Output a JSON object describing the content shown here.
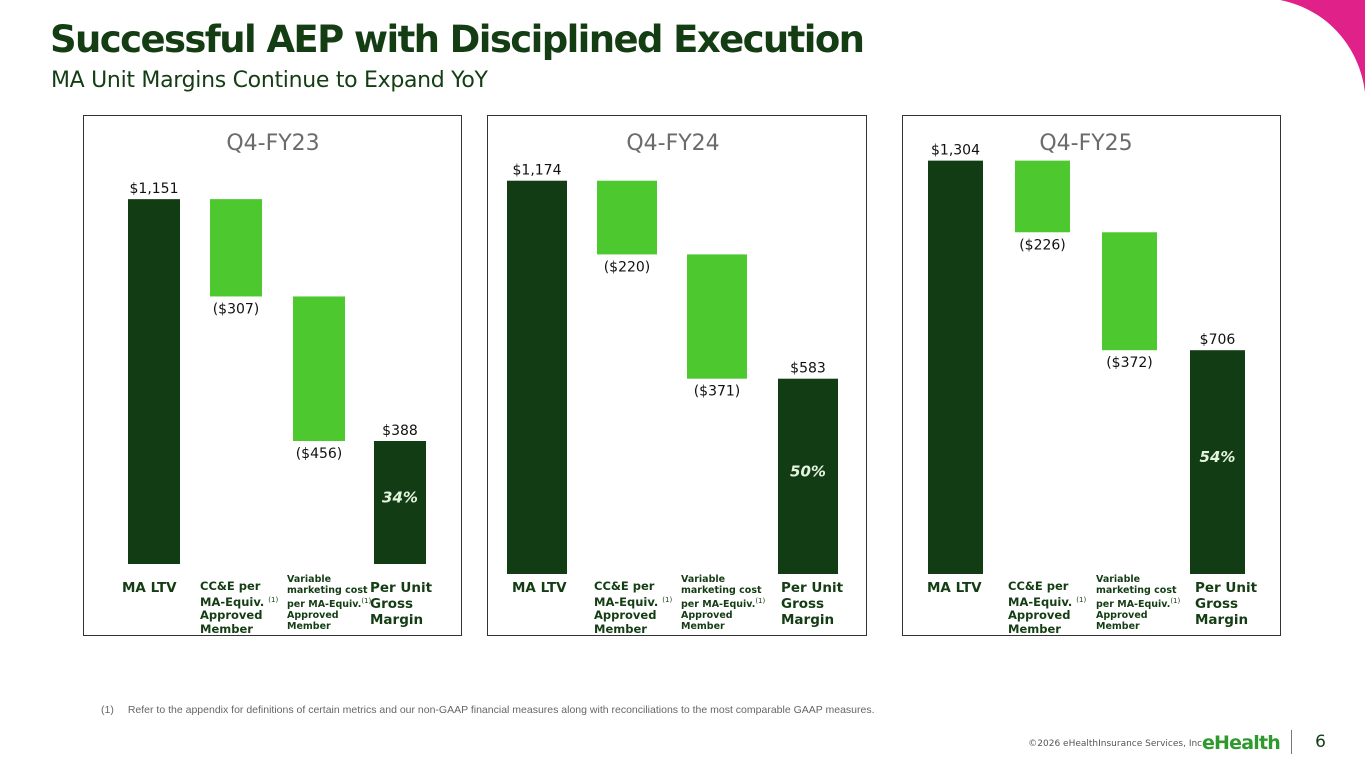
{
  "header": {
    "title": "Successful AEP with Disciplined Execution",
    "subtitle": "MA Unit Margins Continue to Expand YoY"
  },
  "colors": {
    "dark_green": "#123d14",
    "light_green": "#4dc82f",
    "title_green": "#143d14",
    "accent_magenta": "#e0218a"
  },
  "chart_data": [
    {
      "type": "bar",
      "subtype": "waterfall",
      "title": "Q4-FY23",
      "categories": [
        "MA LTV",
        "CC&E per MA-Equiv.(1) Approved Member",
        "Variable marketing cost per MA-Equiv.(1) Approved Member",
        "Per Unit Gross Margin"
      ],
      "values": [
        1151,
        -307,
        -456,
        388
      ],
      "labels": [
        "$1,151",
        "($307)",
        "($456)",
        "$388"
      ],
      "margin_label": "34%",
      "xlabel": "",
      "ylabel": "",
      "grid": false
    },
    {
      "type": "bar",
      "subtype": "waterfall",
      "title": "Q4-FY24",
      "categories": [
        "MA LTV",
        "CC&E per MA-Equiv.(1) Approved Member",
        "Variable marketing cost per MA-Equiv.(1) Approved Member",
        "Per Unit Gross Margin"
      ],
      "values": [
        1174,
        -220,
        -371,
        583
      ],
      "labels": [
        "$1,174",
        "($220)",
        "($371)",
        "$583"
      ],
      "margin_label": "50%",
      "xlabel": "",
      "ylabel": "",
      "grid": false
    },
    {
      "type": "bar",
      "subtype": "waterfall",
      "title": "Q4-FY25",
      "categories": [
        "MA LTV",
        "CC&E per MA-Equiv.(1) Approved Member",
        "Variable marketing cost per MA-Equiv.(1) Approved Member",
        "Per Unit Gross Margin"
      ],
      "values": [
        1304,
        -226,
        -372,
        706
      ],
      "labels": [
        "$1,304",
        "($226)",
        "($372)",
        "$706"
      ],
      "margin_label": "54%",
      "xlabel": "",
      "ylabel": "",
      "grid": false
    }
  ],
  "category_labels": {
    "ma_ltv": "MA LTV",
    "cce_line1": "CC&E per",
    "cce_line2": "MA-Equiv.",
    "cce_line3": "Approved",
    "cce_line4": "Member",
    "vmc_line1": "Variable",
    "vmc_line2": "marketing cost",
    "vmc_line3": "per MA-Equiv.",
    "vmc_line4": "Approved",
    "vmc_line5": "Member",
    "pugm_line1": "Per Unit",
    "pugm_line2": "Gross",
    "pugm_line3": "Margin",
    "footnote_ref": "(1)"
  },
  "footnote": {
    "number": "(1)",
    "text": "Refer to the appendix for definitions of certain metrics and our non-GAAP financial measures along with reconciliations to the most comparable GAAP measures."
  },
  "footer": {
    "copyright": "©2026 eHealthInsurance Services, Inc.",
    "logo": "eHealth",
    "page_number": "6"
  }
}
